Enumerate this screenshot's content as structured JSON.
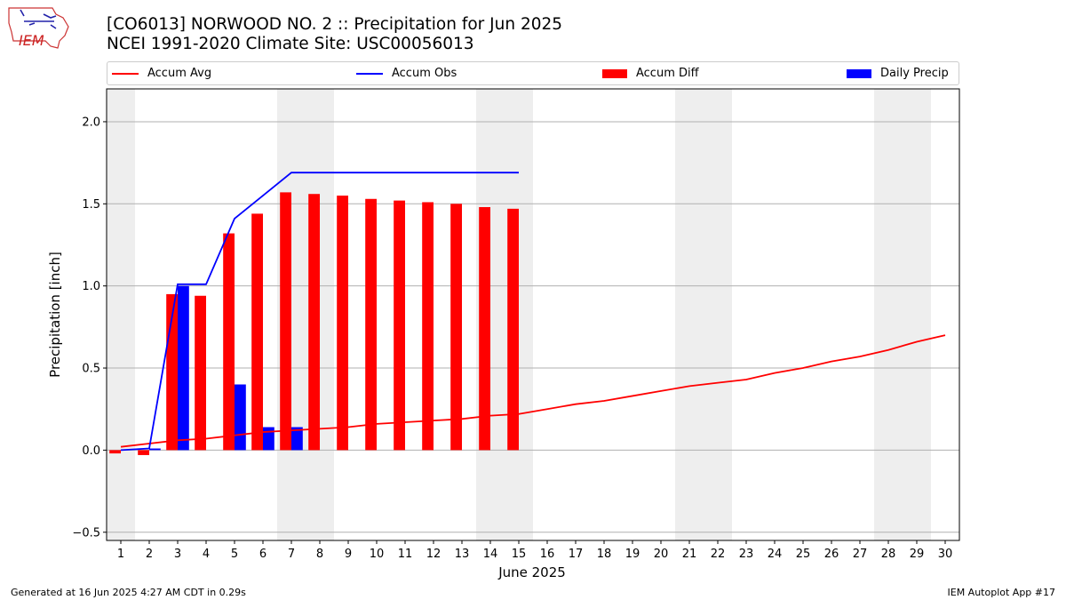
{
  "title_line1": "[CO6013] NORWOOD NO. 2 :: Precipitation for Jun 2025",
  "title_line2": "NCEI 1991-2020 Climate Site: USC00056013",
  "logo_text": "IEM",
  "footer_left": "Generated at 16 Jun 2025 4:27 AM CDT in 0.29s",
  "footer_right": "IEM Autoplot App #17",
  "colors": {
    "avg": "#ff0000",
    "obs": "#0000ff",
    "diff": "#ff0000",
    "daily": "#0000ff",
    "weekend": "#eeeeee",
    "grid": "#b0b0b0"
  },
  "chart_data": {
    "type": "bar",
    "xlabel": "June 2025",
    "ylabel": "Precipitation [inch]",
    "ylim": [
      -0.55,
      2.2
    ],
    "xlim": [
      0.5,
      30.5
    ],
    "yticks": [
      -0.5,
      0.0,
      0.5,
      1.0,
      1.5,
      2.0
    ],
    "ytick_labels": [
      "−0.5",
      "0.0",
      "0.5",
      "1.0",
      "1.5",
      "2.0"
    ],
    "x": [
      1,
      2,
      3,
      4,
      5,
      6,
      7,
      8,
      9,
      10,
      11,
      12,
      13,
      14,
      15,
      16,
      17,
      18,
      19,
      20,
      21,
      22,
      23,
      24,
      25,
      26,
      27,
      28,
      29,
      30
    ],
    "grid": "horizontal",
    "legend_position": "top",
    "weekend_days": [
      1,
      7,
      8,
      14,
      15,
      21,
      22,
      28,
      29
    ],
    "series": [
      {
        "name": "Accum Avg",
        "kind": "line",
        "x": [
          1,
          2,
          3,
          4,
          5,
          6,
          7,
          8,
          9,
          10,
          11,
          12,
          13,
          14,
          15,
          16,
          17,
          18,
          19,
          20,
          21,
          22,
          23,
          24,
          25,
          26,
          27,
          28,
          29,
          30
        ],
        "values": [
          0.02,
          0.04,
          0.06,
          0.07,
          0.09,
          0.11,
          0.12,
          0.13,
          0.14,
          0.16,
          0.17,
          0.18,
          0.19,
          0.21,
          0.22,
          0.25,
          0.28,
          0.3,
          0.33,
          0.36,
          0.39,
          0.41,
          0.43,
          0.47,
          0.5,
          0.54,
          0.57,
          0.61,
          0.66,
          0.7
        ]
      },
      {
        "name": "Accum Obs",
        "kind": "line",
        "x": [
          1,
          2,
          3,
          4,
          5,
          6,
          7,
          8,
          9,
          10,
          11,
          12,
          13,
          14,
          15
        ],
        "values": [
          0.0,
          0.01,
          1.01,
          1.01,
          1.41,
          1.55,
          1.69,
          1.69,
          1.69,
          1.69,
          1.69,
          1.69,
          1.69,
          1.69,
          1.69
        ]
      },
      {
        "name": "Accum Diff",
        "kind": "bar",
        "offset": -0.2,
        "x": [
          1,
          2,
          3,
          4,
          5,
          6,
          7,
          8,
          9,
          10,
          11,
          12,
          13,
          14,
          15
        ],
        "values": [
          -0.02,
          -0.03,
          0.95,
          0.94,
          1.32,
          1.44,
          1.57,
          1.56,
          1.55,
          1.53,
          1.52,
          1.51,
          1.5,
          1.48,
          1.47
        ]
      },
      {
        "name": "Daily Precip",
        "kind": "bar",
        "offset": 0.2,
        "x": [
          1,
          2,
          3,
          4,
          5,
          6,
          7,
          8,
          9,
          10,
          11,
          12,
          13,
          14,
          15
        ],
        "values": [
          0.0,
          0.01,
          1.0,
          0.0,
          0.4,
          0.14,
          0.14,
          0.0,
          0.0,
          0.0,
          0.0,
          0.0,
          0.0,
          0.0,
          0.0
        ]
      }
    ]
  }
}
